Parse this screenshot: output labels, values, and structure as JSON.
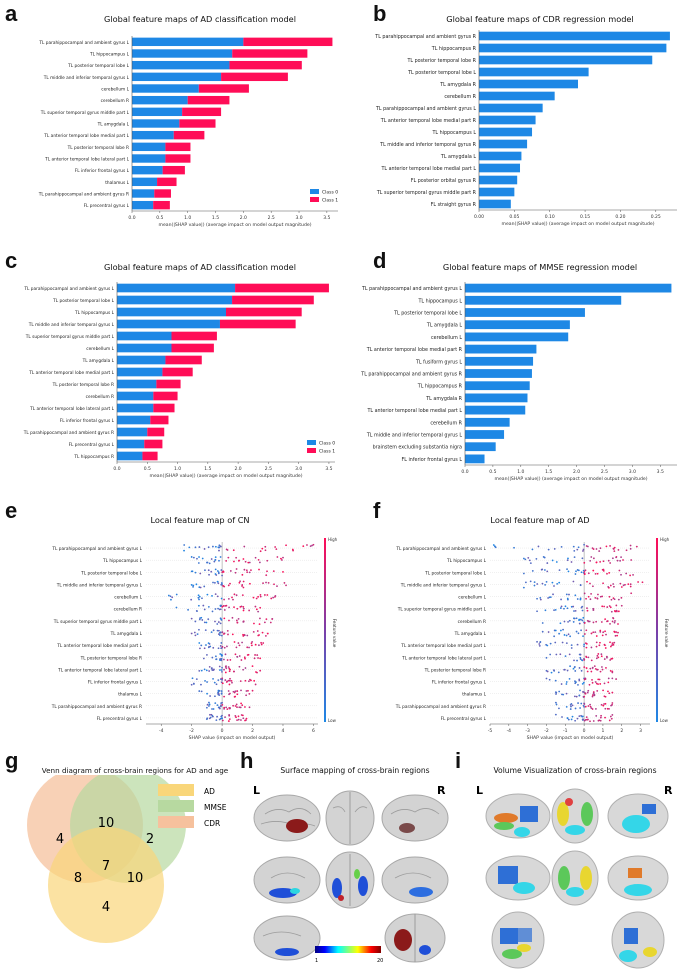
{
  "labels": {
    "a": "a",
    "b": "b",
    "c": "c",
    "d": "d",
    "e": "e",
    "f": "f",
    "g": "g",
    "h": "h",
    "i": "i"
  },
  "titles": {
    "a": "Global feature maps of AD classification model",
    "b": "Global feature maps of CDR regression model",
    "c": "Global feature maps of AD classification model",
    "d": "Global feature maps of MMSE regression model",
    "e": "Local feature map of CN",
    "f": "Local feature map of AD",
    "g": "Venn diagram of cross-brain regions for AD and age",
    "h": "Surface mapping of cross-brain regions",
    "i": "Volume Visualization of cross-brain regions"
  },
  "colors": {
    "class0": "#1e88e5",
    "class1": "#ff0d57",
    "bar": "#1e88e5",
    "venn_ad": "#f9d67a",
    "venn_mmse": "#b7d9a0",
    "venn_cdr": "#f6c19d"
  },
  "chart_data": [
    {
      "id": "a",
      "type": "bar",
      "orientation": "horizontal",
      "stacked": true,
      "title": "Global feature maps of AD classification model",
      "xlabel": "mean(|SHAP value|) (average impact on model output magnitude)",
      "xlim": [
        0,
        3.7
      ],
      "xticks": [
        "0.0",
        "0.5",
        "1.0",
        "1.5",
        "2.0",
        "2.5",
        "3.0",
        "3.5"
      ],
      "legend": [
        "Class 0",
        "Class 1"
      ],
      "legend_position": "lower-right",
      "categories": [
        "TL parahippocampal and ambient gyrus L",
        "TL hippocampus L",
        "TL posterior temporal lobe L",
        "TL middle and inferior temporal gyrus L",
        "cerebellum L",
        "cerebellum R",
        "TL superior temporal gyrus middle part L",
        "TL amygdala L",
        "TL anterior temporal lobe medial part L",
        "TL posterior temporal lobe R",
        "TL anterior temporal lobe lateral part L",
        "FL inferior frontal gyrus L",
        "thalamus L",
        "TL parahippocampal and ambient gyrus R",
        "FL precentral gyrus L"
      ],
      "series": [
        {
          "name": "Class 0",
          "values": [
            2.0,
            1.8,
            1.75,
            1.6,
            1.2,
            1.0,
            0.9,
            0.85,
            0.75,
            0.6,
            0.6,
            0.55,
            0.45,
            0.4,
            0.38
          ]
        },
        {
          "name": "Class 1",
          "values": [
            1.6,
            1.35,
            1.3,
            1.2,
            0.9,
            0.75,
            0.7,
            0.65,
            0.55,
            0.45,
            0.45,
            0.4,
            0.35,
            0.3,
            0.3
          ]
        }
      ]
    },
    {
      "id": "b",
      "type": "bar",
      "orientation": "horizontal",
      "title": "Global feature maps of CDR regression model",
      "xlabel": "mean(|SHAP value|) (average impact on model output magnitude)",
      "xlim": [
        0,
        0.28
      ],
      "xticks": [
        "0.00",
        "0.05",
        "0.10",
        "0.15",
        "0.20",
        "0.25"
      ],
      "categories": [
        "TL parahippocampal and ambient gyrus R",
        "TL hippocampus R",
        "TL posterior temporal lobe R",
        "TL posterior temporal lobe L",
        "TL amygdala R",
        "cerebellum R",
        "TL parahippocampal and ambient gyrus L",
        "TL anterior temporal lobe medial part R",
        "TL hippocampus L",
        "TL middle and inferior temporal gyrus R",
        "TL amygdala L",
        "TL anterior temporal lobe medial part L",
        "FL posterior orbital gyrus R",
        "TL superior temporal gyrus middle part R",
        "FL straight gyrus R"
      ],
      "values": [
        0.27,
        0.265,
        0.245,
        0.155,
        0.14,
        0.107,
        0.09,
        0.08,
        0.075,
        0.068,
        0.06,
        0.058,
        0.054,
        0.05,
        0.045
      ]
    },
    {
      "id": "c",
      "type": "bar",
      "orientation": "horizontal",
      "stacked": true,
      "title": "Global feature maps of AD classification model",
      "xlabel": "mean(|SHAP value|) (average impact on model output magnitude)",
      "xlim": [
        0,
        3.6
      ],
      "xticks": [
        "0.0",
        "0.5",
        "1.0",
        "1.5",
        "2.0",
        "2.5",
        "3.0",
        "3.5"
      ],
      "legend": [
        "Class 0",
        "Class 1"
      ],
      "legend_position": "lower-right",
      "categories": [
        "TL parahippocampal and ambient gyrus L",
        "TL posterior temporal lobe L",
        "TL hippocampus L",
        "TL middle and inferior temporal gyrus L",
        "TL superior temporal gyrus middle part L",
        "cerebellum L",
        "TL amygdala L",
        "TL anterior temporal lobe medial part L",
        "TL posterior temporal lobe R",
        "cerebellum R",
        "TL anterior temporal lobe lateral part L",
        "FL inferior frontal gyrus L",
        "TL parahippocampal and ambient gyrus R",
        "FL precentral gyrus L",
        "TL hippocampus R"
      ],
      "series": [
        {
          "name": "Class 0",
          "values": [
            1.95,
            1.9,
            1.8,
            1.7,
            0.9,
            0.9,
            0.8,
            0.75,
            0.65,
            0.6,
            0.6,
            0.55,
            0.5,
            0.45,
            0.42
          ]
        },
        {
          "name": "Class 1",
          "values": [
            1.55,
            1.35,
            1.25,
            1.25,
            0.75,
            0.7,
            0.6,
            0.5,
            0.4,
            0.4,
            0.35,
            0.3,
            0.28,
            0.3,
            0.25
          ]
        }
      ]
    },
    {
      "id": "d",
      "type": "bar",
      "orientation": "horizontal",
      "title": "Global feature maps of MMSE regression model",
      "xlabel": "mean(|SHAP value|) (average impact on model output magnitude)",
      "xlim": [
        0,
        3.8
      ],
      "xticks": [
        "0.0",
        "0.5",
        "1.0",
        "1.5",
        "2.0",
        "2.5",
        "3.0",
        "3.5"
      ],
      "categories": [
        "TL parahippocampal and ambient gyrus L",
        "TL hippocampus L",
        "TL posterior temporal lobe L",
        "TL amygdala L",
        "cerebellum L",
        "TL anterior temporal lobe medial part R",
        "TL fusiform gyrus L",
        "TL parahippocampal and ambient gyrus R",
        "TL hippocampus R",
        "TL amygdala R",
        "TL anterior temporal lobe medial part L",
        "cerebellum R",
        "TL middle and inferior temporal gyrus L",
        "brainstem excluding substantia nigra",
        "FL inferior frontal gyrus L"
      ],
      "values": [
        3.7,
        2.8,
        2.15,
        1.88,
        1.85,
        1.28,
        1.22,
        1.2,
        1.16,
        1.12,
        1.08,
        0.8,
        0.7,
        0.55,
        0.35
      ]
    },
    {
      "id": "e",
      "type": "scatter",
      "subtype": "beeswarm",
      "title": "Local feature map of CN",
      "xlabel": "SHAP value (impact on model output)",
      "xlim": [
        -5,
        6.3
      ],
      "xticks": [
        "-4",
        "-2",
        "0",
        "2",
        "4",
        "6"
      ],
      "colorbar": {
        "high": "High",
        "low": "Low",
        "label": "Feature value"
      },
      "categories": [
        "TL parahippocampal and ambient gyrus L",
        "TL hippocampus L",
        "TL posterior temporal lobe L",
        "TL middle and inferior temporal gyrus L",
        "cerebellum L",
        "cerebellum R",
        "TL superior temporal gyrus middle part L",
        "TL amygdala L",
        "TL anterior temporal lobe medial part L",
        "TL posterior temporal lobe R",
        "TL anterior temporal lobe lateral part L",
        "FL inferior frontal gyrus L",
        "thalamus L",
        "TL parahippocampal and ambient gyrus R",
        "FL precentral gyrus L"
      ],
      "spread": [
        [
          -2.5,
          6.0
        ],
        [
          -2,
          4
        ],
        [
          -2,
          4
        ],
        [
          -2,
          4.2
        ],
        [
          -3.5,
          3.5
        ],
        [
          -3,
          2.5
        ],
        [
          -2,
          3.3
        ],
        [
          -2,
          3
        ],
        [
          -1.5,
          2.7
        ],
        [
          -1.2,
          2.5
        ],
        [
          -1.5,
          2.5
        ],
        [
          -2,
          2.2
        ],
        [
          -1.5,
          2
        ],
        [
          -1,
          1.8
        ],
        [
          -1,
          1.6
        ]
      ]
    },
    {
      "id": "f",
      "type": "scatter",
      "subtype": "beeswarm",
      "title": "Local feature map of AD",
      "xlabel": "SHAP value (impact on model output)",
      "xlim": [
        -5,
        3.5
      ],
      "xticks": [
        "-5",
        "-4",
        "-3",
        "-2",
        "-1",
        "0",
        "1",
        "2",
        "3"
      ],
      "colorbar": {
        "high": "High",
        "low": "Low",
        "label": "Feature value"
      },
      "categories": [
        "TL parahippocampal and ambient gyrus L",
        "TL hippocampus L",
        "TL posterior temporal lobe L",
        "TL middle and inferior temporal gyrus L",
        "cerebellum L",
        "TL superior temporal gyrus middle part L",
        "cerebellum R",
        "TL amygdala L",
        "TL anterior temporal lobe medial part L",
        "TL anterior temporal lobe lateral part L",
        "TL posterior temporal lobe R",
        "FL inferior frontal gyrus L",
        "thalamus L",
        "TL parahippocampal and ambient gyrus R",
        "FL precentral gyrus L"
      ],
      "spread": [
        [
          -4.8,
          2.8
        ],
        [
          -3.2,
          2.5
        ],
        [
          -3.2,
          2.6
        ],
        [
          -3.2,
          3.1
        ],
        [
          -2.5,
          2.5
        ],
        [
          -2.5,
          2
        ],
        [
          -2.2,
          1.8
        ],
        [
          -2.2,
          1.8
        ],
        [
          -2.5,
          1.6
        ],
        [
          -2,
          1.5
        ],
        [
          -2,
          1.5
        ],
        [
          -2,
          1.7
        ],
        [
          -1.5,
          1.5
        ],
        [
          -1.5,
          1.5
        ],
        [
          -1.5,
          1.5
        ]
      ]
    }
  ],
  "venn": {
    "legend": [
      "AD",
      "MMSE",
      "CDR"
    ],
    "regions": {
      "cdr_only": "4",
      "mmse_only": "2",
      "ad_only": "4",
      "cdr_mmse": "10",
      "cdr_ad": "8",
      "mmse_ad": "10",
      "all": "7"
    }
  },
  "surface": {
    "side_left": "L",
    "side_right": "R",
    "scale_min": "1",
    "scale_max": "20"
  },
  "volume": {
    "side_left": "L",
    "side_right": "R"
  }
}
